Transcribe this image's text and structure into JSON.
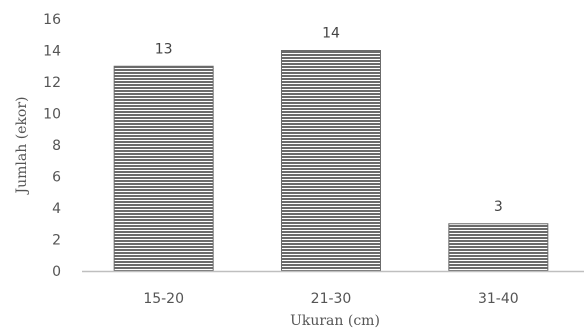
{
  "chart_data": {
    "type": "bar",
    "categories": [
      "15-20",
      "21-30",
      "31-40"
    ],
    "values": [
      13,
      14,
      3
    ],
    "data_labels": [
      "13",
      "14",
      "3"
    ],
    "title": "",
    "xlabel": "Ukuran (cm)",
    "ylabel": "Jumlah (ekor)",
    "ylim": [
      0,
      16
    ],
    "yticks": [
      "0",
      "2",
      "4",
      "6",
      "8",
      "10",
      "12",
      "14",
      "16"
    ],
    "grid": false,
    "legend": "none",
    "bar_pattern": "horizontal-stripes",
    "bar_color": "#6b6b6b",
    "axis_color": "#bfbfbf"
  }
}
